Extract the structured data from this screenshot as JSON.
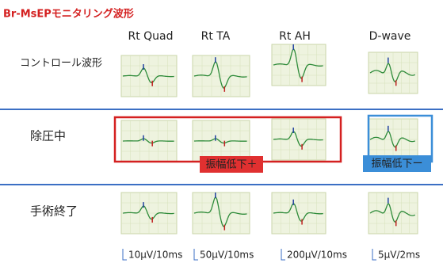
{
  "header": {
    "title": "Br-MsEPモニタリング波形"
  },
  "columns": [
    "Rt Quad",
    "Rt TA",
    "Rt AH",
    "D-wave"
  ],
  "rows": [
    "コントロール波形",
    "除圧中",
    "手術終了"
  ],
  "annotations": {
    "red": "振幅低下＋",
    "blue": "振幅低下ー"
  },
  "scales": [
    "10μV/10ms",
    "50μV/10ms",
    "200μV/10ms",
    "5μV/2ms"
  ]
}
